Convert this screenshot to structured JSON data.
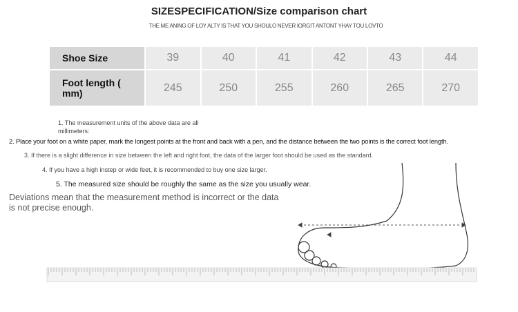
{
  "header": {
    "title": "SIZESPECIFICATION/Size comparison chart",
    "subtitle": "THE ME ANING OF LOY ALTY IS THAT YOU SHOULO NEVER IORGIT ANTONT YHAY TOU LOVTO"
  },
  "table": {
    "row_headers": [
      "Shoe Size",
      "Foot length ( mm)"
    ],
    "sizes": [
      "39",
      "40",
      "41",
      "42",
      "43",
      "44"
    ],
    "lengths": [
      "245",
      "250",
      "255",
      "260",
      "265",
      "270"
    ]
  },
  "notes": [
    "1. The measurement units of the above data are all millimeters:",
    "2. Place your foot on a white paper, mark the longest points at the front and back with a pen, and the distance between the two points is the correct foot length.",
    "3. If there is a slight difference in size between the left and right foot, the data of the larger foot should be used as the standard.",
    "4. If you have a high instep or wide feet, it is recommended to buy one size larger.",
    "5. The measured size should be roughly the same as the size you usually wear.",
    "Deviations mean that the measurement method is incorrect or the data is not precise enough."
  ]
}
